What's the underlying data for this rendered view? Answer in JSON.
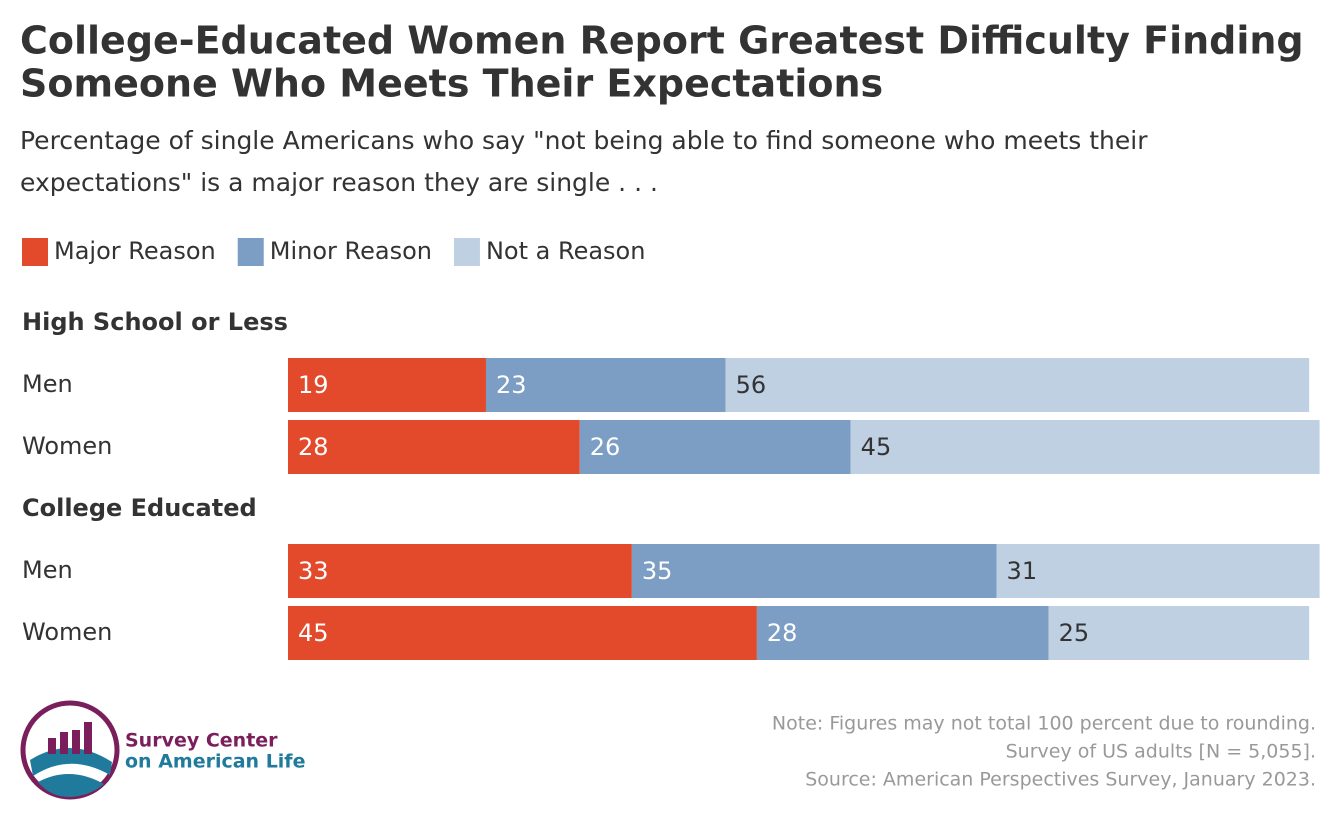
{
  "chart_data": {
    "type": "stacked-bar",
    "title": [
      "College-Educated Women Report Greatest Difficulty Finding",
      "Someone Who Meets Their Expectations"
    ],
    "subtitle": [
      "Percentage of single Americans who say \"not being able to find someone who meets their",
      "expectations\" is a major reason they are single . . ."
    ],
    "groups": [
      "High School or Less",
      "College Educated"
    ],
    "categories": [
      "Men",
      "Women",
      "Men",
      "Women"
    ],
    "series": [
      {
        "name": "Major Reason",
        "color": "#e34a2c",
        "label_color": "#ffffff",
        "values": [
          19,
          28,
          33,
          45
        ]
      },
      {
        "name": "Minor Reason",
        "color": "#7c9dc4",
        "label_color": "#ffffff",
        "values": [
          23,
          26,
          35,
          28
        ]
      },
      {
        "name": "Not a Reason",
        "color": "#c0d0e3",
        "label_color": "#333333",
        "values": [
          56,
          45,
          31,
          25
        ]
      }
    ],
    "xlim": [
      0,
      100
    ],
    "notes": [
      "Note: Figures may not total 100 percent due to rounding.",
      "Survey of US adults [N = 5,055].",
      "Source: American Perspectives Survey, January 2023."
    ]
  },
  "logo": {
    "lines": [
      "Survey Center",
      "on American Life"
    ]
  }
}
